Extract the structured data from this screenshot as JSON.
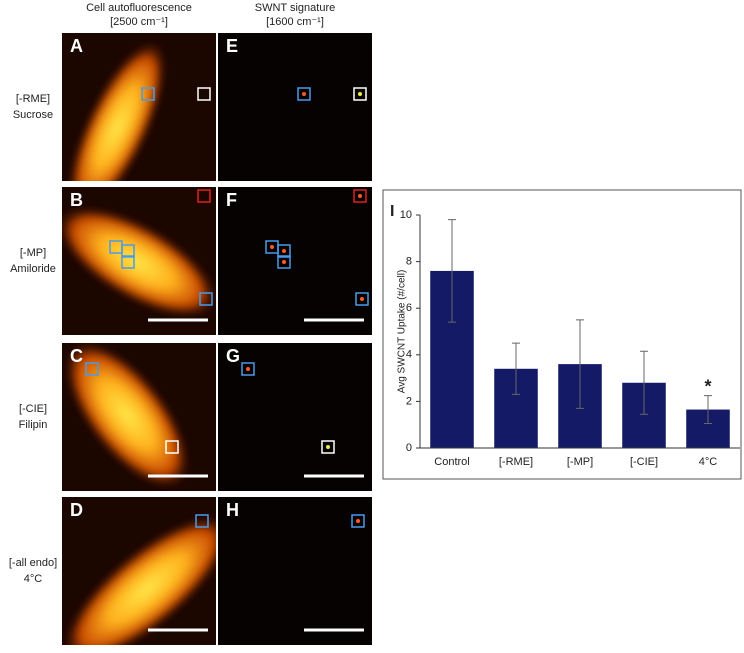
{
  "figure": {
    "column_headers": [
      [
        "Cell autofluorescence",
        "[2500 cm⁻¹]"
      ],
      [
        "SWNT signature",
        "[1600 cm⁻¹]"
      ]
    ],
    "row_labels": [
      [
        "[-RME]",
        "Sucrose"
      ],
      [
        "[-MP]",
        "Amiloride"
      ],
      [
        "[-CIE]",
        "Filipin"
      ],
      [
        "[-all endo]",
        "4°C"
      ]
    ],
    "panels": [
      [
        "A",
        "E"
      ],
      [
        "B",
        "F"
      ],
      [
        "C",
        "G"
      ],
      [
        "D",
        "H"
      ]
    ]
  },
  "chart_data": {
    "type": "bar",
    "panel_label": "I",
    "ylabel": "Avg SWCNT Uptake (#/cell)",
    "categories": [
      "Control",
      "[-RME]",
      "[-MP]",
      "[-CIE]",
      "4°C"
    ],
    "values": [
      7.6,
      3.4,
      3.6,
      2.8,
      1.65
    ],
    "errors": [
      2.2,
      1.1,
      1.9,
      1.35,
      0.6
    ],
    "color": "#151a66",
    "annotation": "*",
    "ylim": [
      0,
      10
    ],
    "yticks": [
      0,
      2,
      4,
      6,
      8,
      10
    ]
  }
}
